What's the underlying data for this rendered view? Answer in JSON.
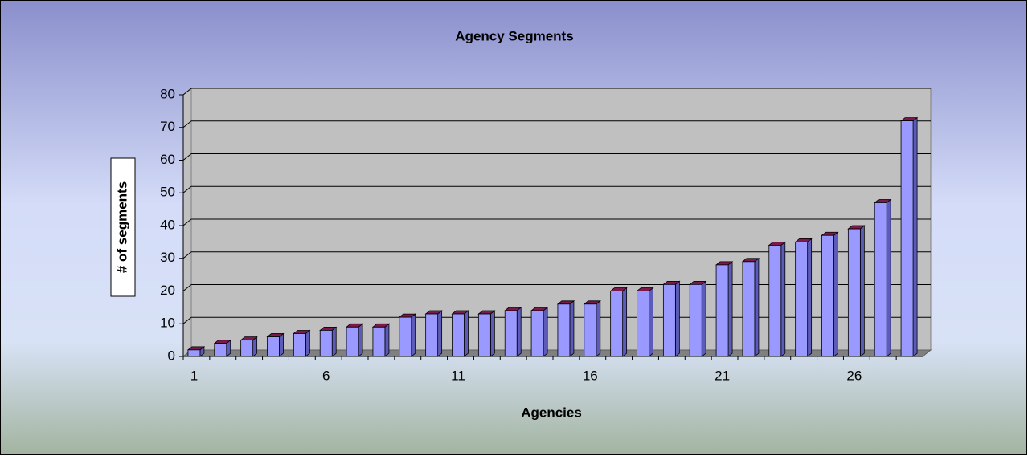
{
  "chart_data": {
    "type": "bar",
    "title": "Agency Segments",
    "x_label": "Agencies",
    "y_label": "# of segments",
    "categories": [
      1,
      null,
      null,
      null,
      null,
      6,
      null,
      null,
      null,
      null,
      11,
      null,
      null,
      null,
      null,
      16,
      null,
      null,
      null,
      null,
      21,
      null,
      null,
      null,
      null,
      26,
      null,
      null
    ],
    "values": [
      2,
      4,
      5,
      6,
      7,
      8,
      9,
      9,
      12,
      13,
      13,
      13,
      14,
      14,
      16,
      16,
      20,
      20,
      22,
      22,
      28,
      29,
      34,
      35,
      37,
      39,
      47,
      72
    ],
    "color": "#9999ff",
    "ylim": [
      0,
      80
    ],
    "yticks": [
      0,
      10,
      20,
      30,
      40,
      50,
      60,
      70,
      80
    ],
    "grid": true
  }
}
